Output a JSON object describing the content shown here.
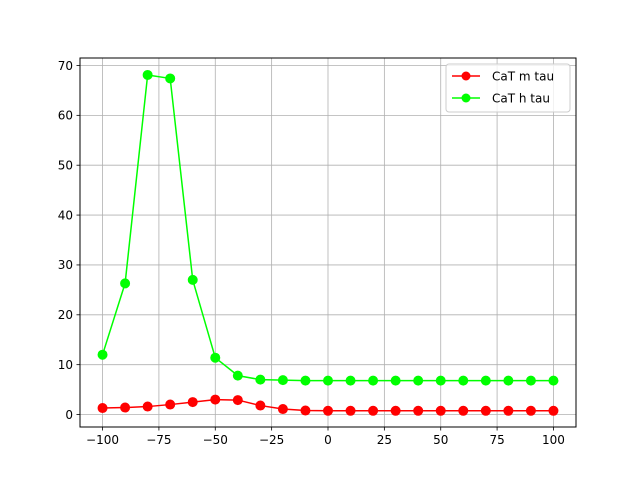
{
  "chart_data": {
    "type": "line",
    "title": "",
    "xlabel": "",
    "ylabel": "",
    "x": [
      -100,
      -90,
      -80,
      -70,
      -60,
      -50,
      -40,
      -30,
      -20,
      -10,
      0,
      10,
      20,
      30,
      40,
      50,
      60,
      70,
      80,
      90,
      100
    ],
    "series": [
      {
        "name": "CaT m tau",
        "color": "#ff0000",
        "values": [
          1.3,
          1.4,
          1.6,
          2.0,
          2.5,
          3.0,
          2.9,
          1.8,
          1.1,
          0.8,
          0.75,
          0.75,
          0.75,
          0.75,
          0.75,
          0.75,
          0.75,
          0.75,
          0.75,
          0.75,
          0.75
        ]
      },
      {
        "name": "CaT h tau",
        "color": "#00ff00",
        "values": [
          12.0,
          26.3,
          68.1,
          67.4,
          27.0,
          11.4,
          7.8,
          7.0,
          6.9,
          6.8,
          6.8,
          6.8,
          6.8,
          6.8,
          6.8,
          6.8,
          6.8,
          6.8,
          6.8,
          6.8,
          6.8
        ]
      }
    ],
    "xlim": [
      -110,
      110
    ],
    "ylim": [
      -2.5,
      71.5
    ],
    "xticks": [
      -100,
      -75,
      -50,
      -25,
      0,
      25,
      50,
      75,
      100
    ],
    "yticks": [
      0,
      10,
      20,
      30,
      40,
      50,
      60,
      70
    ],
    "grid": true,
    "legend_position": "top-right"
  }
}
